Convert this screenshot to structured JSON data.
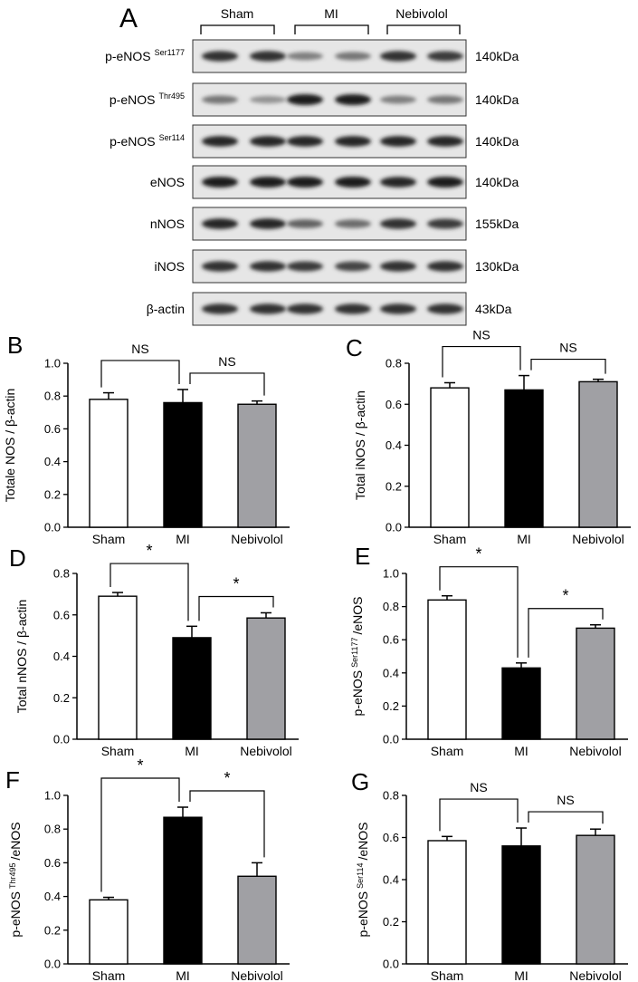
{
  "blot": {
    "panel_letter": "A",
    "groups": [
      "Sham",
      "MI",
      "Nebivolol"
    ],
    "rows": [
      {
        "name": "p-eNOS",
        "sup": "Ser1177",
        "kda": "140kDa",
        "bands": [
          0.85,
          0.85,
          0.45,
          0.5,
          0.85,
          0.8
        ]
      },
      {
        "name": "p-eNOS",
        "sup": "Thr495",
        "kda": "140kDa",
        "bands": [
          0.5,
          0.35,
          0.95,
          0.95,
          0.45,
          0.5
        ]
      },
      {
        "name": "p-eNOS",
        "sup": "Ser114",
        "kda": "140kDa",
        "bands": [
          0.9,
          0.9,
          0.9,
          0.9,
          0.9,
          0.9
        ]
      },
      {
        "name": "eNOS",
        "sup": "",
        "kda": "140kDa",
        "bands": [
          0.95,
          0.95,
          0.95,
          0.95,
          0.9,
          0.95
        ]
      },
      {
        "name": "nNOS",
        "sup": "",
        "kda": "155kDa",
        "bands": [
          0.9,
          0.9,
          0.6,
          0.55,
          0.85,
          0.8
        ]
      },
      {
        "name": "iNOS",
        "sup": "",
        "kda": "130kDa",
        "bands": [
          0.85,
          0.85,
          0.8,
          0.75,
          0.85,
          0.85
        ]
      },
      {
        "name": "β-actin",
        "sup": "",
        "kda": "43kDa",
        "bands": [
          0.85,
          0.85,
          0.85,
          0.85,
          0.85,
          0.85
        ]
      }
    ]
  },
  "colors": {
    "sham": "#ffffff",
    "mi": "#000000",
    "nebivolol": "#a0a0a4"
  },
  "chart_data": [
    {
      "panel": "B",
      "type": "bar",
      "categories": [
        "Sham",
        "MI",
        "Nebivolol"
      ],
      "values": [
        0.78,
        0.76,
        0.75
      ],
      "errors": [
        0.04,
        0.08,
        0.02
      ],
      "ylabel": "Totale NOS / β-actin",
      "ylim": [
        0,
        1.0
      ],
      "ticks": [
        "0.0",
        "0.2",
        "0.4",
        "0.6",
        "0.8",
        "1.0"
      ],
      "comparisons": [
        {
          "from": 0,
          "to": 1,
          "label": "NS"
        },
        {
          "from": 1,
          "to": 2,
          "label": "NS"
        }
      ]
    },
    {
      "panel": "C",
      "type": "bar",
      "categories": [
        "Sham",
        "MI",
        "Nebivolol"
      ],
      "values": [
        0.68,
        0.67,
        0.71
      ],
      "errors": [
        0.025,
        0.07,
        0.012
      ],
      "ylabel": "Total iNOS / β-actin",
      "ylim": [
        0,
        0.8
      ],
      "ticks": [
        "0.0",
        "0.2",
        "0.4",
        "0.6",
        "0.8"
      ],
      "comparisons": [
        {
          "from": 0,
          "to": 1,
          "label": "NS"
        },
        {
          "from": 1,
          "to": 2,
          "label": "NS"
        }
      ]
    },
    {
      "panel": "D",
      "type": "bar",
      "categories": [
        "Sham",
        "MI",
        "Nebivolol"
      ],
      "values": [
        0.69,
        0.49,
        0.585
      ],
      "errors": [
        0.018,
        0.055,
        0.025
      ],
      "ylabel": "Total nNOS / β-actin",
      "ylim": [
        0,
        0.8
      ],
      "ticks": [
        "0.0",
        "0.2",
        "0.4",
        "0.6",
        "0.8"
      ],
      "comparisons": [
        {
          "from": 0,
          "to": 1,
          "label": "*"
        },
        {
          "from": 1,
          "to": 2,
          "label": "*"
        }
      ]
    },
    {
      "panel": "E",
      "type": "bar",
      "categories": [
        "Sham",
        "MI",
        "Nebivolol"
      ],
      "values": [
        0.84,
        0.43,
        0.67
      ],
      "errors": [
        0.025,
        0.03,
        0.02
      ],
      "ylabel": "p-eNOS",
      "ylabel_sup": "Ser1177",
      "ylabel_tail": "/eNOS",
      "ylim": [
        0,
        1.0
      ],
      "ticks": [
        "0.0",
        "0.2",
        "0.4",
        "0.6",
        "0.8",
        "1.0"
      ],
      "comparisons": [
        {
          "from": 0,
          "to": 1,
          "label": "*"
        },
        {
          "from": 1,
          "to": 2,
          "label": "*"
        }
      ]
    },
    {
      "panel": "F",
      "type": "bar",
      "categories": [
        "Sham",
        "MI",
        "Nebivolol"
      ],
      "values": [
        0.38,
        0.87,
        0.52
      ],
      "errors": [
        0.015,
        0.06,
        0.08
      ],
      "ylabel": "p-eNOS",
      "ylabel_sup": "Thr495",
      "ylabel_tail": "/eNOS",
      "ylim": [
        0,
        1.0
      ],
      "ticks": [
        "0.0",
        "0.2",
        "0.4",
        "0.6",
        "0.8",
        "1.0"
      ],
      "comparisons": [
        {
          "from": 0,
          "to": 1,
          "label": "*"
        },
        {
          "from": 1,
          "to": 2,
          "label": "*"
        }
      ]
    },
    {
      "panel": "G",
      "type": "bar",
      "categories": [
        "Sham",
        "MI",
        "Nebivolol"
      ],
      "values": [
        0.585,
        0.56,
        0.61
      ],
      "errors": [
        0.02,
        0.085,
        0.03
      ],
      "ylabel": "p-eNOS",
      "ylabel_sup": "Ser114",
      "ylabel_tail": "/eNOS",
      "ylim": [
        0,
        0.8
      ],
      "ticks": [
        "0.0",
        "0.2",
        "0.4",
        "0.6",
        "0.8"
      ],
      "comparisons": [
        {
          "from": 0,
          "to": 1,
          "label": "NS"
        },
        {
          "from": 1,
          "to": 2,
          "label": "NS"
        }
      ]
    }
  ]
}
